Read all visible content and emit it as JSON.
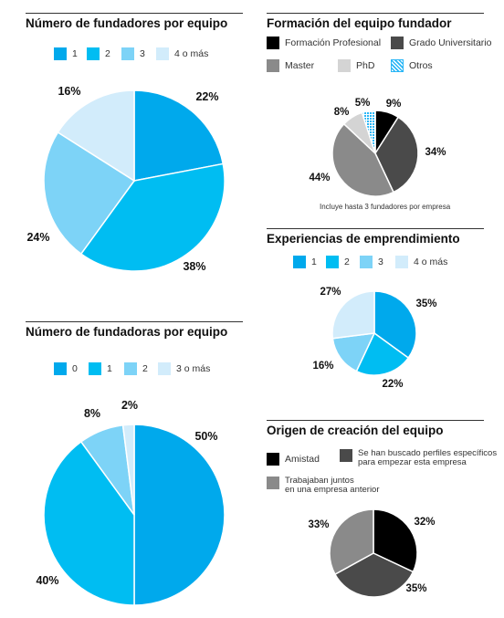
{
  "colors": {
    "blue_dark": "#00a9ec",
    "blue_mid": "#00bdf2",
    "blue_light": "#7dd3f7",
    "blue_pale": "#d2ecfb",
    "black": "#000000",
    "gray_dark": "#4a4a4a",
    "gray_mid": "#8a8a8a",
    "gray_light": "#d4d4d4",
    "hatch": "#29b6f6"
  },
  "chart_data": [
    {
      "type": "pie",
      "title": "Número de fundadores por equipo",
      "categories": [
        "1",
        "2",
        "3",
        "4 o más"
      ],
      "values": [
        22,
        38,
        24,
        16
      ],
      "labels": [
        "22%",
        "38%",
        "24%",
        "16%"
      ],
      "colors": [
        "#00a9ec",
        "#00bdf2",
        "#7dd3f7",
        "#d2ecfb"
      ]
    },
    {
      "type": "pie",
      "title": "Número de fundadoras por equipo",
      "categories": [
        "0",
        "1",
        "2",
        "3 o más"
      ],
      "values": [
        50,
        40,
        8,
        2
      ],
      "labels": [
        "50%",
        "40%",
        "8%",
        "2%"
      ],
      "colors": [
        "#00a9ec",
        "#00bdf2",
        "#7dd3f7",
        "#d2ecfb"
      ]
    },
    {
      "type": "pie",
      "title": "Formación del equipo fundador",
      "categories": [
        "Formación Profesional",
        "Grado Universitario",
        "Master",
        "PhD",
        "Otros"
      ],
      "values": [
        9,
        34,
        44,
        8,
        5
      ],
      "labels": [
        "9%",
        "34%",
        "44%",
        "8%",
        "5%"
      ],
      "colors": [
        "#000000",
        "#4a4a4a",
        "#8a8a8a",
        "#d4d4d4",
        "#29b6f6"
      ],
      "note": "Incluye hasta 3 fundadores por empresa"
    },
    {
      "type": "pie",
      "title": "Experiencias de emprendimiento",
      "categories": [
        "1",
        "2",
        "3",
        "4 o más"
      ],
      "values": [
        35,
        22,
        16,
        27
      ],
      "labels": [
        "35%",
        "22%",
        "16%",
        "27%"
      ],
      "colors": [
        "#00a9ec",
        "#00bdf2",
        "#7dd3f7",
        "#d2ecfb"
      ]
    },
    {
      "type": "pie",
      "title": "Origen de creación del equipo",
      "categories": [
        "Amistad",
        "Se han buscado perfiles específicos para empezar esta empresa",
        "Trabajaban juntos en una empresa anterior"
      ],
      "legend_lines": [
        [
          "Amistad"
        ],
        [
          "Se han buscado perfiles específicos",
          "para empezar esta empresa"
        ],
        [
          "Trabajaban juntos",
          "en una empresa anterior"
        ]
      ],
      "values": [
        32,
        35,
        33
      ],
      "labels": [
        "32%",
        "35%",
        "33%"
      ],
      "colors": [
        "#000000",
        "#4a4a4a",
        "#8a8a8a"
      ]
    }
  ]
}
